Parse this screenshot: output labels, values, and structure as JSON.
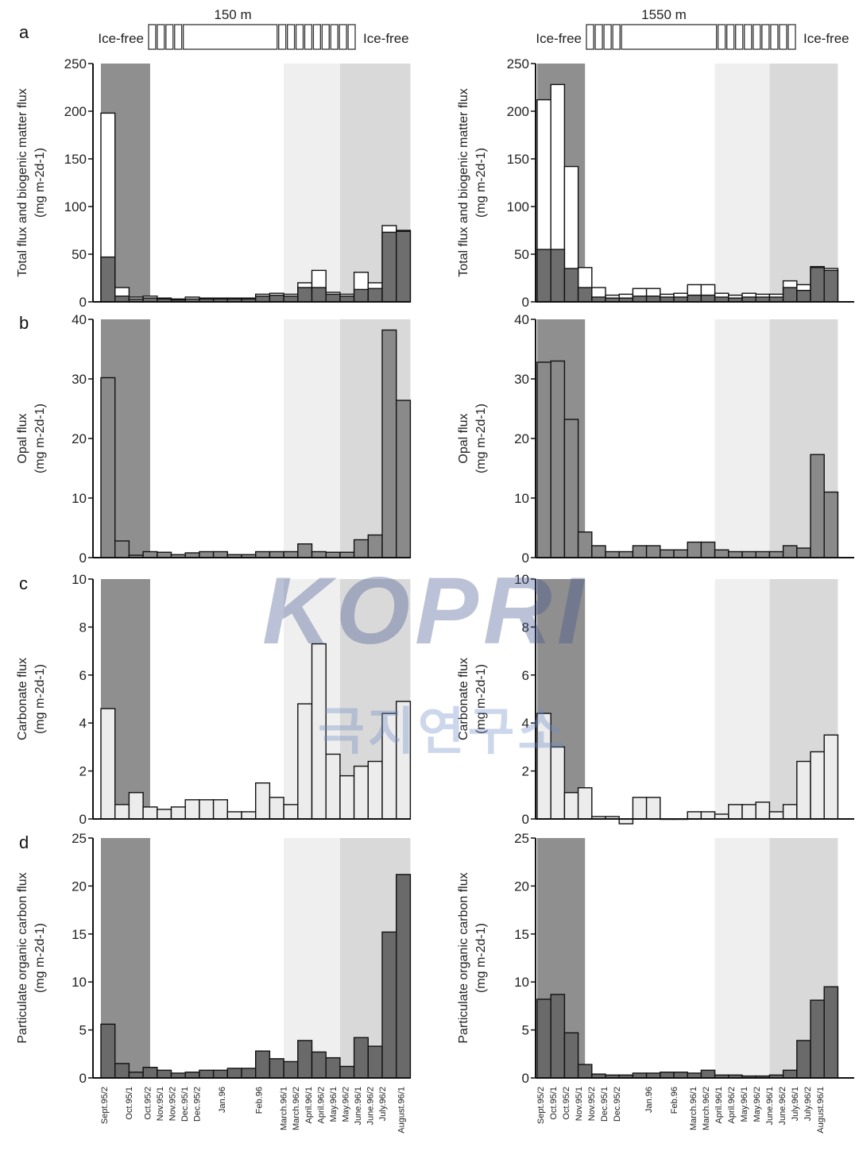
{
  "watermark": {
    "logo": "KOPRI",
    "subtitle": "극지연구소"
  },
  "stations": [
    {
      "depth_label": "150 m",
      "ice_free_left": "Ice-free",
      "ice_free_right": "Ice-free",
      "ice_bar": [
        1,
        1,
        1,
        1,
        11,
        1,
        1,
        1,
        1,
        1,
        1,
        1,
        1,
        1
      ]
    },
    {
      "depth_label": "1550 m",
      "ice_free_left": "Ice-free",
      "ice_free_right": "Ice-free",
      "ice_bar": [
        1,
        1,
        1,
        1,
        11,
        1,
        1,
        1,
        1,
        1,
        1,
        1,
        1,
        1
      ]
    }
  ],
  "panel_letters": [
    "a",
    "b",
    "c",
    "d"
  ],
  "shading": {
    "dark_band": [
      0,
      3.5
    ],
    "light_band": [
      13,
      17
    ],
    "mid_band": [
      17,
      22
    ],
    "colors": {
      "dark": "#8f8f8f",
      "light": "#efefef",
      "mid": "#d9d9d9"
    }
  },
  "bar_colors": {
    "total": "#ffffff",
    "biogenic": "#6e6e6e",
    "opal": "#8a8a8a",
    "carbonate": "#ececec",
    "poc": "#6a6a6a"
  },
  "chart_data": [
    {
      "type": "bar",
      "panel": "a",
      "station": "150 m",
      "ylabel": "Total flux and biogenic matter flux",
      "yunit": "(mg m-2d-1)",
      "ylim": [
        0,
        250
      ],
      "yticks": [
        "0",
        "50",
        "100",
        "150",
        "200",
        "250"
      ],
      "series": [
        {
          "name": "total",
          "values": [
            198,
            15,
            5,
            6,
            4,
            3,
            5,
            4,
            4,
            4,
            4,
            8,
            9,
            8,
            20,
            33,
            10,
            8,
            31,
            20,
            80,
            75
          ]
        },
        {
          "name": "biogenic",
          "values": [
            47,
            6,
            3,
            4,
            3,
            2,
            3,
            3,
            3,
            3,
            3,
            6,
            7,
            6,
            15,
            15,
            8,
            6,
            13,
            14,
            73,
            74
          ]
        }
      ]
    },
    {
      "type": "bar",
      "panel": "a",
      "station": "1550 m",
      "ylabel": "Total flux and biogenic matter flux",
      "yunit": "(mg m-2d-1)",
      "ylim": [
        0,
        250
      ],
      "yticks": [
        "0",
        "50",
        "100",
        "150",
        "200",
        "250"
      ],
      "series": [
        {
          "name": "total",
          "values": [
            212,
            228,
            142,
            36,
            15,
            7,
            8,
            14,
            14,
            8,
            9,
            18,
            18,
            9,
            7,
            9,
            8,
            8,
            22,
            18,
            37,
            35
          ]
        },
        {
          "name": "biogenic",
          "values": [
            55,
            55,
            35,
            15,
            5,
            4,
            4,
            6,
            6,
            5,
            5,
            7,
            7,
            5,
            4,
            5,
            5,
            5,
            15,
            12,
            36,
            33
          ]
        }
      ]
    },
    {
      "type": "bar",
      "panel": "b",
      "station": "150 m",
      "ylabel": "Opal flux",
      "yunit": "(mg m-2d-1)",
      "ylim": [
        0,
        40
      ],
      "yticks": [
        "0",
        "10",
        "20",
        "30",
        "40"
      ],
      "values": [
        30.2,
        2.8,
        0.4,
        1.0,
        0.9,
        0.5,
        0.8,
        1.0,
        1.0,
        0.5,
        0.5,
        1.0,
        1.0,
        1.0,
        2.3,
        1.0,
        0.9,
        0.9,
        3.0,
        3.8,
        38.2,
        26.4
      ]
    },
    {
      "type": "bar",
      "panel": "b",
      "station": "1550 m",
      "ylabel": "Opal flux",
      "yunit": "(mg m-2d-1)",
      "ylim": [
        0,
        40
      ],
      "yticks": [
        "0",
        "10",
        "20",
        "30",
        "40"
      ],
      "values": [
        32.8,
        33.0,
        23.2,
        4.3,
        2.0,
        1.0,
        1.0,
        2.0,
        2.0,
        1.3,
        1.3,
        2.6,
        2.6,
        1.3,
        1.0,
        1.0,
        1.0,
        1.0,
        2.0,
        1.6,
        17.3,
        11.0
      ]
    },
    {
      "type": "bar",
      "panel": "c",
      "station": "150 m",
      "ylabel": "Carbonate flux",
      "yunit": "(mg m-2d-1)",
      "ylim": [
        0,
        10
      ],
      "yticks": [
        "0",
        "2",
        "4",
        "6",
        "8",
        "10"
      ],
      "values": [
        4.6,
        0.6,
        1.1,
        0.5,
        0.4,
        0.5,
        0.8,
        0.8,
        0.8,
        0.3,
        0.3,
        1.5,
        0.9,
        0.6,
        4.8,
        7.3,
        2.7,
        1.8,
        2.2,
        2.4,
        4.4,
        4.9
      ]
    },
    {
      "type": "bar",
      "panel": "c",
      "station": "1550 m",
      "ylabel": "Carbonate flux",
      "yunit": "(mg m-2d-1)",
      "ylim": [
        0,
        10
      ],
      "yticks": [
        "0",
        "2",
        "4",
        "6",
        "8",
        "10"
      ],
      "values": [
        4.4,
        3.0,
        1.1,
        1.3,
        0.1,
        0.1,
        -0.2,
        0.9,
        0.9,
        0,
        0,
        0.3,
        0.3,
        0.2,
        0.6,
        0.6,
        0.7,
        0.3,
        0.6,
        2.4,
        2.8,
        3.5
      ]
    },
    {
      "type": "bar",
      "panel": "d",
      "station": "150 m",
      "ylabel": "Particulate organic carbon flux",
      "yunit": "(mg m-2d-1)",
      "ylim": [
        0,
        25
      ],
      "yticks": [
        "0",
        "5",
        "10",
        "15",
        "20",
        "25"
      ],
      "values": [
        5.6,
        1.5,
        0.6,
        1.1,
        0.8,
        0.5,
        0.6,
        0.8,
        0.8,
        1.0,
        1.0,
        2.8,
        2.0,
        1.7,
        3.9,
        2.7,
        2.1,
        1.2,
        4.2,
        3.3,
        15.2,
        21.2
      ]
    },
    {
      "type": "bar",
      "panel": "d",
      "station": "1550 m",
      "ylabel": "Particulate organic carbon flux",
      "yunit": "(mg m-2d-1)",
      "ylim": [
        0,
        25
      ],
      "yticks": [
        "0",
        "5",
        "10",
        "15",
        "20",
        "25"
      ],
      "values": [
        8.2,
        8.7,
        4.7,
        1.4,
        0.4,
        0.3,
        0.3,
        0.5,
        0.5,
        0.6,
        0.6,
        0.5,
        0.8,
        0.3,
        0.3,
        0.2,
        0.2,
        0.3,
        0.8,
        3.9,
        8.1,
        9.5
      ]
    }
  ],
  "x_labels": [
    [
      "Sept.95/2",
      "Oct.95/1",
      "Oct.95/2",
      "Nov.95/1",
      "Nov.95/2",
      "Dec.95/1",
      "Dec.95/2",
      "Jan.96",
      "Feb.96",
      "March.96/1",
      "March.96/2",
      "April.96/1",
      "April.96/2",
      "May.96/1",
      "May.96/2",
      "June.96/1",
      "June.96/2",
      "July.96/2",
      "August.96/1"
    ],
    [
      "Sept.95/2",
      "Oct.95/1",
      "Oct.95/2",
      "Nov.95/1",
      "Nov.95/2",
      "Dec.95/1",
      "Dec.95/2",
      "Jan.96",
      "Feb.96",
      "March.96/1",
      "March.96/2",
      "April.96/1",
      "April.96/2",
      "May.96/1",
      "May.96/2",
      "June.96/1",
      "June.96/2",
      "July.96/1",
      "July.96/2",
      "August.96/1"
    ]
  ],
  "x_label_positions": [
    [
      1,
      3,
      4.5,
      5.5,
      6.5,
      7.5,
      8.5,
      10.5,
      13.5,
      15.5,
      16.5,
      17.5,
      18.5,
      19.5,
      20.5,
      21.5,
      22.5,
      23.5,
      25
    ],
    [
      1,
      2,
      3,
      4,
      5,
      6,
      7,
      9.5,
      11.5,
      13,
      14,
      15,
      16,
      17,
      18,
      19,
      20,
      21,
      22,
      23
    ]
  ]
}
